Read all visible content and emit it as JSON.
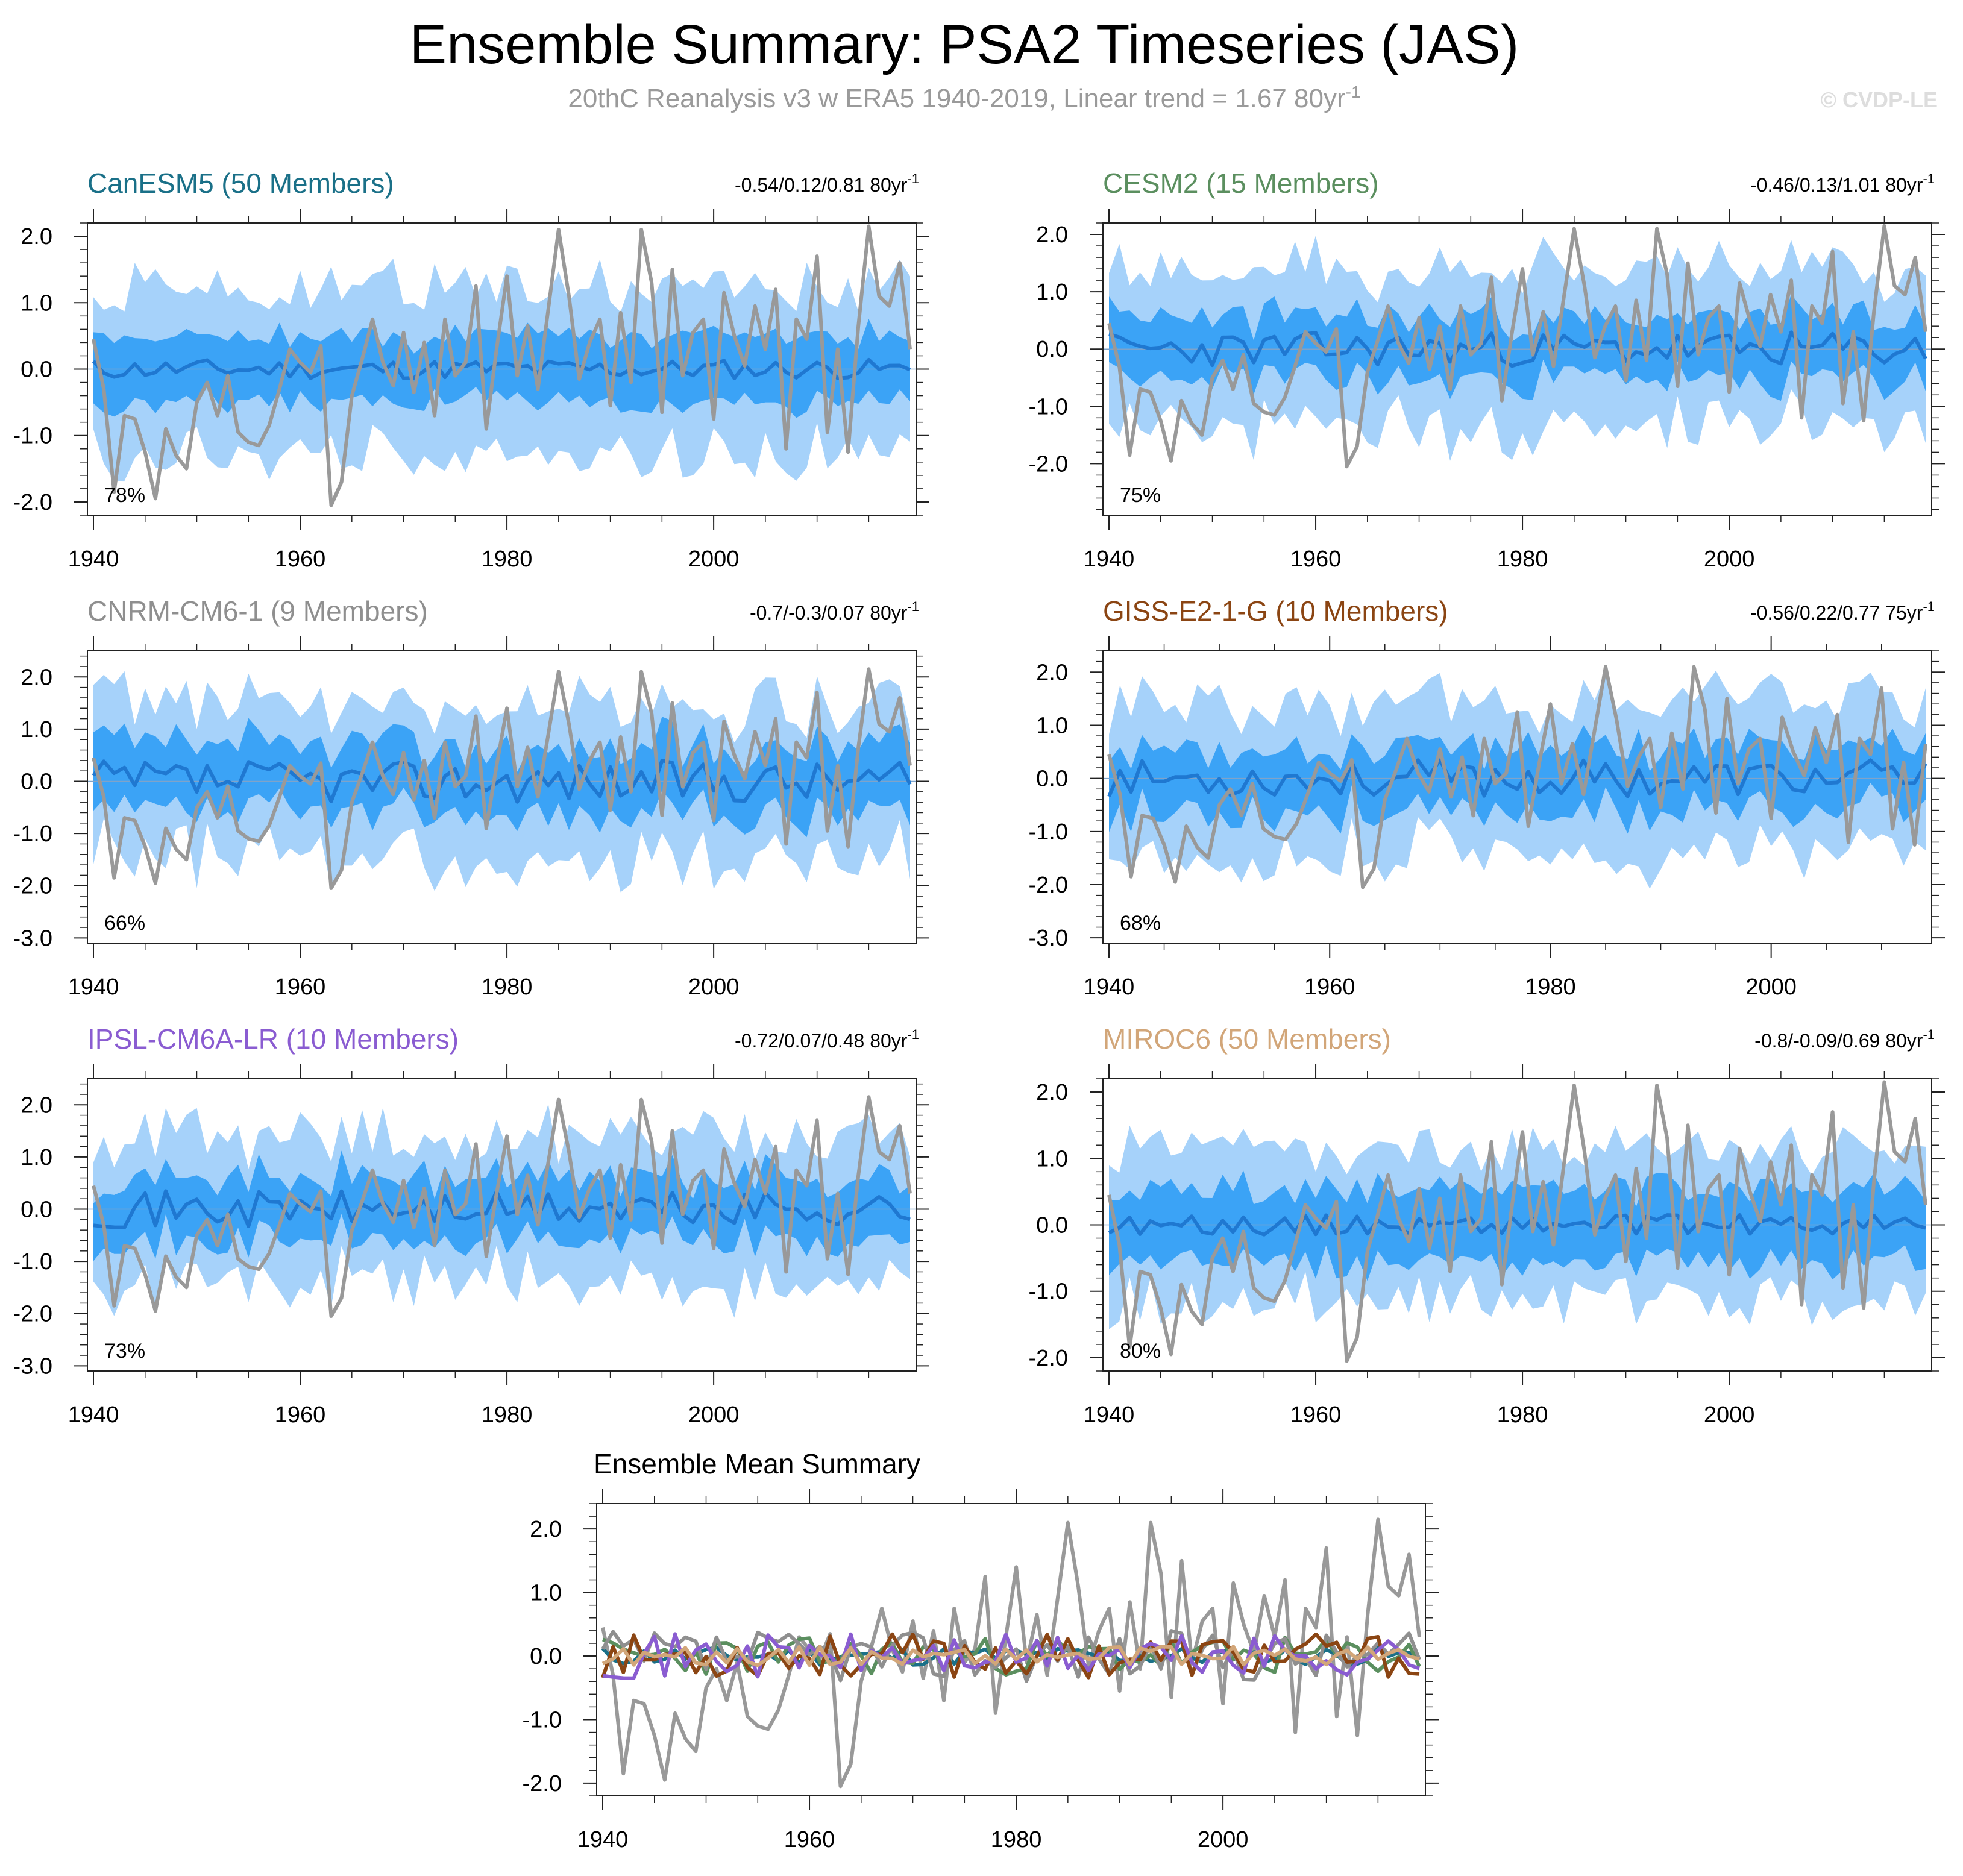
{
  "title": "Ensemble Summary: PSA2 Timeseries (JAS)",
  "subtitle_main": "20thC Reanalysis v3 w ERA5 1940-2019, Linear trend = 1.67 80yr",
  "subtitle_sup": "-1",
  "watermark": "© CVDP-LE",
  "colors": {
    "band_outer": "#a6d2fa",
    "band_inner": "#3ba3f6",
    "ens_mean": "#1f78d1",
    "obs": "#999999"
  },
  "chart_data": [
    {
      "type": "line",
      "model": "CanESM5 (50 Members)",
      "title_color": "#1a7088",
      "trend_text": "-0.54/0.12/0.81 80yr",
      "trend_sup": "-1",
      "percent": "78%",
      "ylim": [
        -2.2,
        2.2
      ],
      "yticks": [
        "2.0",
        "1.0",
        "0.0",
        "-1.0",
        "-2.0"
      ],
      "ytick_values": [
        2,
        1,
        0,
        -1,
        -2
      ],
      "xlim": [
        1940,
        2019
      ],
      "xticks": [
        "1940",
        "1960",
        "1980",
        "2000"
      ],
      "series": [
        "ensemble 10-90% range",
        "ensemble 25-75% range",
        "ensemble mean",
        "20thC Reanalysis v3 w ERA5"
      ],
      "band_half_outer": 1.2,
      "band_half_inner": 0.5,
      "mean_scale": 0.15,
      "seed": 11
    },
    {
      "type": "line",
      "model": "CESM2 (15 Members)",
      "title_color": "#5b8f5f",
      "trend_text": "-0.46/0.13/1.01 80yr",
      "trend_sup": "-1",
      "percent": "75%",
      "ylim": [
        -2.9,
        2.2
      ],
      "yticks": [
        "2.0",
        "1.0",
        "0.0",
        "-1.0",
        "-2.0"
      ],
      "ytick_values": [
        2,
        1,
        0,
        -1,
        -2
      ],
      "xlim": [
        1940,
        2019
      ],
      "xticks": [
        "1940",
        "1960",
        "1980",
        "2000"
      ],
      "series": [
        "ensemble 10-90% range",
        "ensemble 25-75% range",
        "ensemble mean",
        "20thC Reanalysis v3 w ERA5"
      ],
      "band_half_outer": 1.3,
      "band_half_inner": 0.55,
      "mean_scale": 0.3,
      "seed": 23
    },
    {
      "type": "line",
      "model": "CNRM-CM6-1 (9 Members)",
      "title_color": "#8f8f8f",
      "trend_text": "-0.7/-0.3/0.07 80yr",
      "trend_sup": "-1",
      "percent": "66%",
      "ylim": [
        -3.1,
        2.5
      ],
      "yticks": [
        "2.0",
        "1.0",
        "0.0",
        "-1.0",
        "-2.0",
        "-3.0"
      ],
      "ytick_values": [
        2,
        1,
        0,
        -1,
        -2,
        -3
      ],
      "xlim": [
        1940,
        2019
      ],
      "xticks": [
        "1940",
        "1960",
        "1980",
        "2000"
      ],
      "series": [
        "ensemble 10-90% range",
        "ensemble 25-75% range",
        "ensemble mean",
        "20thC Reanalysis v3 w ERA5"
      ],
      "band_half_outer": 1.4,
      "band_half_inner": 0.65,
      "mean_scale": 0.4,
      "seed": 37
    },
    {
      "type": "line",
      "model": "GISS-E2-1-G (10 Members)",
      "title_color": "#8b4513",
      "trend_text": "-0.56/0.22/0.77 75yr",
      "trend_sup": "-1",
      "percent": "68%",
      "ylim": [
        -3.1,
        2.4
      ],
      "yticks": [
        "2.0",
        "1.0",
        "0.0",
        "-1.0",
        "-2.0",
        "-3.0"
      ],
      "ytick_values": [
        2,
        1,
        0,
        -1,
        -2,
        -3
      ],
      "xlim": [
        1940,
        2014
      ],
      "xticks": [
        "1940",
        "1960",
        "1980",
        "2000"
      ],
      "series": [
        "ensemble 10-90% range",
        "ensemble 25-75% range",
        "ensemble mean",
        "20thC Reanalysis v3 w ERA5"
      ],
      "band_half_outer": 1.35,
      "band_half_inner": 0.6,
      "mean_scale": 0.35,
      "seed": 53
    },
    {
      "type": "line",
      "model": "IPSL-CM6A-LR (10 Members)",
      "title_color": "#8a5cd1",
      "trend_text": "-0.72/0.07/0.48 80yr",
      "trend_sup": "-1",
      "percent": "73%",
      "ylim": [
        -3.1,
        2.5
      ],
      "yticks": [
        "2.0",
        "1.0",
        "0.0",
        "-1.0",
        "-2.0",
        "-3.0"
      ],
      "ytick_values": [
        2,
        1,
        0,
        -1,
        -2,
        -3
      ],
      "xlim": [
        1940,
        2019
      ],
      "xticks": [
        "1940",
        "1960",
        "1980",
        "2000"
      ],
      "series": [
        "ensemble 10-90% range",
        "ensemble 25-75% range",
        "ensemble mean",
        "20thC Reanalysis v3 w ERA5"
      ],
      "band_half_outer": 1.35,
      "band_half_inner": 0.6,
      "mean_scale": 0.35,
      "seed": 71
    },
    {
      "type": "line",
      "model": "MIROC6 (50 Members)",
      "title_color": "#d2a679",
      "trend_text": "-0.8/-0.09/0.69 80yr",
      "trend_sup": "-1",
      "percent": "80%",
      "ylim": [
        -2.2,
        2.2
      ],
      "yticks": [
        "2.0",
        "1.0",
        "0.0",
        "-1.0",
        "-2.0"
      ],
      "ytick_values": [
        2,
        1,
        0,
        -1,
        -2
      ],
      "xlim": [
        1940,
        2019
      ],
      "xticks": [
        "1940",
        "1960",
        "1980",
        "2000"
      ],
      "series": [
        "ensemble 10-90% range",
        "ensemble 25-75% range",
        "ensemble mean",
        "20thC Reanalysis v3 w ERA5"
      ],
      "band_half_outer": 1.1,
      "band_half_inner": 0.55,
      "mean_scale": 0.15,
      "seed": 89
    },
    {
      "type": "line",
      "model": "Ensemble Mean Summary",
      "title_color": "#000000",
      "ylim": [
        -2.2,
        2.4
      ],
      "yticks": [
        "2.0",
        "1.0",
        "0.0",
        "-1.0",
        "-2.0"
      ],
      "ytick_values": [
        2,
        1,
        0,
        -1,
        -2
      ],
      "xlim": [
        1940,
        2019
      ],
      "xticks": [
        "1940",
        "1960",
        "1980",
        "2000"
      ],
      "series": [
        "20thC Reanalysis v3 w ERA5",
        "CanESM5",
        "CESM2",
        "CNRM-CM6-1",
        "GISS-E2-1-G",
        "IPSL-CM6A-LR",
        "MIROC6"
      ],
      "series_colors": [
        "#999999",
        "#1a7088",
        "#5b8f5f",
        "#8f8f8f",
        "#8b4513",
        "#8a5cd1",
        "#d2a679"
      ],
      "series_scales": [
        1.0,
        0.15,
        0.3,
        0.4,
        0.35,
        0.35,
        0.15
      ],
      "seeds": [
        0,
        11,
        23,
        37,
        53,
        71,
        89
      ]
    }
  ],
  "obs_series": {
    "name": "20thC Reanalysis v3 w ERA5",
    "start_year": 1940,
    "values": [
      0.45,
      -0.3,
      -1.85,
      -0.7,
      -0.75,
      -1.25,
      -1.95,
      -0.9,
      -1.3,
      -1.5,
      -0.5,
      -0.2,
      -0.7,
      -0.1,
      -0.95,
      -1.1,
      -1.15,
      -0.85,
      -0.3,
      0.3,
      0.1,
      -0.05,
      0.35,
      -2.05,
      -1.7,
      -0.4,
      0.15,
      0.75,
      0.1,
      -0.25,
      0.55,
      -0.35,
      0.4,
      -0.7,
      0.75,
      -0.1,
      0.1,
      1.25,
      -0.9,
      0.3,
      1.4,
      -0.1,
      0.65,
      -0.3,
      0.9,
      2.1,
      1.1,
      -0.15,
      0.4,
      0.75,
      -0.55,
      0.85,
      -0.2,
      2.1,
      1.3,
      -0.65,
      1.5,
      -0.1,
      0.55,
      0.75,
      -0.75,
      1.15,
      0.5,
      0.05,
      0.95,
      0.3,
      1.2,
      -1.2,
      0.75,
      0.45,
      1.7,
      -0.95,
      0.3,
      -1.25,
      0.65,
      2.15,
      1.1,
      0.95,
      1.6,
      0.3
    ]
  }
}
